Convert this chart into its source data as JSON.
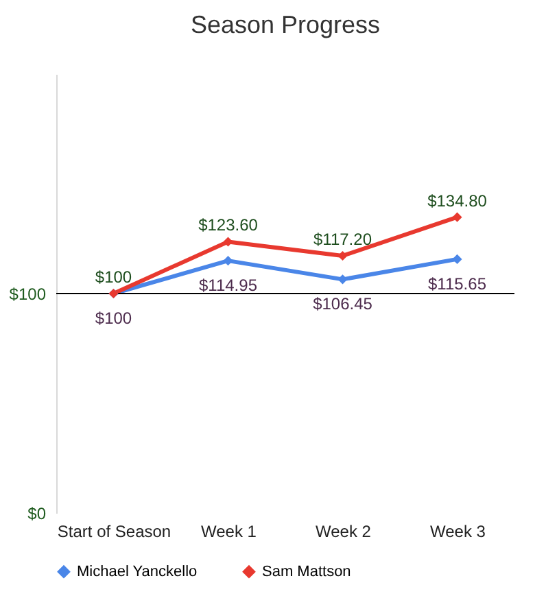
{
  "chart_data": {
    "type": "line",
    "title": "Season Progress",
    "categories": [
      "Start of Season",
      "Week 1",
      "Week 2",
      "Week 3"
    ],
    "series": [
      {
        "name": "Michael Yanckello",
        "color": "#4a86e8",
        "values": [
          100,
          114.95,
          106.45,
          115.65
        ],
        "value_labels": [
          "$100",
          "$114.95",
          "$106.45",
          "$115.65"
        ]
      },
      {
        "name": "Sam Mattson",
        "color": "#e8392f",
        "values": [
          100,
          123.6,
          117.2,
          134.8
        ],
        "value_labels": [
          "$100",
          "$123.60",
          "$117.20",
          "$134.80"
        ]
      }
    ],
    "ylim": [
      0,
      200
    ],
    "yticks": [
      {
        "value": 0,
        "label": "$0"
      },
      {
        "value": 100,
        "label": "$100"
      }
    ],
    "ref_lines": [
      {
        "axis": "y",
        "value": 100,
        "color": "#000000"
      }
    ],
    "grid": false,
    "legend": "bottom",
    "marker": "diamond",
    "line_style": "solid"
  }
}
